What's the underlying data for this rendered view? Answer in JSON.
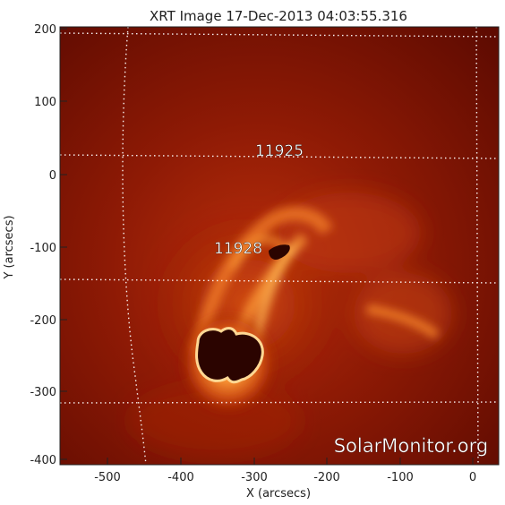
{
  "title": "XRT Image 17-Dec-2013 04:03:55.316",
  "xlabel": "X (arcsecs)",
  "ylabel": "Y (arcsecs)",
  "watermark": "SolarMonitor.org",
  "xticks": [
    "-500",
    "-400",
    "-300",
    "-200",
    "-100",
    "0"
  ],
  "yticks": [
    "200",
    "100",
    "0",
    "-100",
    "-200",
    "-300",
    "-400"
  ],
  "regions": [
    {
      "id": "11925",
      "label": "11925"
    },
    {
      "id": "11928",
      "label": "11928"
    }
  ],
  "colors": {
    "background": "#6e0d02",
    "glow": "#ff9f38",
    "grid": "#ffffff",
    "axis": "#222222"
  }
}
